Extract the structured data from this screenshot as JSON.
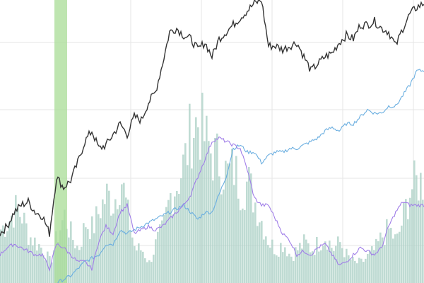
{
  "chart_data": {
    "type": "line",
    "title": "",
    "xlabel": "",
    "ylabel": "",
    "grid": true,
    "legend": "none",
    "x": [
      0,
      1,
      2,
      3,
      4,
      5,
      6,
      7,
      8,
      9,
      10,
      11,
      12,
      13,
      14,
      15,
      16,
      17,
      18,
      19,
      20,
      21,
      22,
      23,
      24,
      25,
      26,
      27,
      28,
      29,
      30,
      31,
      32,
      33,
      34,
      35,
      36,
      37,
      38,
      39,
      40,
      41,
      42,
      43,
      44,
      45,
      46,
      47,
      48,
      49,
      50,
      51,
      52,
      53,
      54,
      55,
      56,
      57,
      58,
      59,
      60
    ],
    "ylim": [
      0,
      400
    ],
    "highlight_band": {
      "from": 7.7,
      "to": 9.5,
      "color": "#a8dc96"
    },
    "series": [
      {
        "color": "#333333",
        "kind": "line",
        "values": [
          70,
          80,
          100,
          110,
          115,
          100,
          95,
          70,
          150,
          135,
          145,
          170,
          200,
          215,
          190,
          195,
          210,
          225,
          210,
          235,
          230,
          255,
          270,
          310,
          355,
          360,
          350,
          345,
          330,
          340,
          320,
          345,
          355,
          365,
          375,
          385,
          395,
          400,
          335,
          335,
          330,
          335,
          340,
          320,
          300,
          310,
          320,
          325,
          340,
          350,
          345,
          365,
          365,
          370,
          360,
          355,
          335,
          360,
          380,
          390,
          395
        ]
      },
      {
        "color": "#6aaee0",
        "kind": "line",
        "values": [
          null,
          null,
          null,
          null,
          null,
          null,
          null,
          null,
          0,
          5,
          10,
          20,
          30,
          35,
          40,
          55,
          55,
          75,
          70,
          75,
          80,
          85,
          90,
          95,
          100,
          105,
          110,
          100,
          90,
          100,
          100,
          125,
          150,
          190,
          195,
          185,
          185,
          170,
          180,
          185,
          185,
          190,
          190,
          195,
          200,
          205,
          215,
          220,
          215,
          225,
          225,
          235,
          245,
          240,
          240,
          250,
          250,
          265,
          280,
          300,
          300
        ]
      },
      {
        "color": "#a07ee8",
        "kind": "line",
        "values": [
          40,
          50,
          55,
          50,
          45,
          40,
          40,
          20,
          55,
          50,
          40,
          30,
          30,
          20,
          60,
          80,
          70,
          100,
          110,
          70,
          75,
          80,
          75,
          80,
          90,
          100,
          110,
          125,
          150,
          175,
          200,
          205,
          200,
          195,
          190,
          160,
          120,
          110,
          110,
          90,
          70,
          60,
          40,
          45,
          40,
          50,
          55,
          40,
          25,
          30,
          40,
          50,
          45,
          40,
          50,
          80,
          100,
          115,
          110,
          110,
          110
        ]
      },
      {
        "color": "#aacfc4",
        "kind": "bar",
        "values": [
          80,
          90,
          110,
          100,
          70,
          60,
          50,
          30,
          70,
          100,
          70,
          50,
          90,
          80,
          110,
          130,
          120,
          160,
          100,
          50,
          50,
          30,
          60,
          80,
          130,
          150,
          180,
          230,
          240,
          210,
          190,
          180,
          160,
          170,
          140,
          150,
          120,
          90,
          60,
          50,
          60,
          40,
          50,
          60,
          50,
          60,
          70,
          50,
          60,
          40,
          30,
          30,
          40,
          50,
          70,
          80,
          60,
          100,
          140,
          150,
          150
        ]
      }
    ]
  }
}
